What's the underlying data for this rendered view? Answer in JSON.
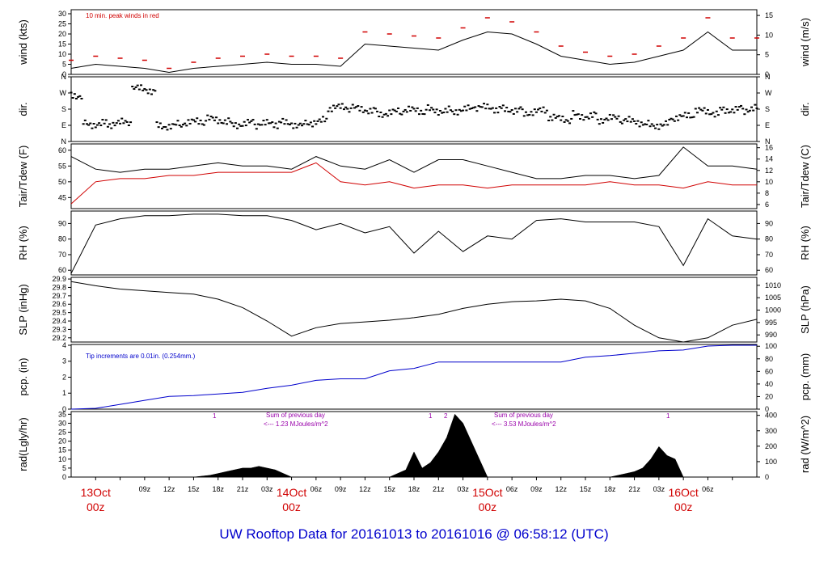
{
  "title": "UW Rooftop Data for 20161013  to  20161016 @ 06:58:12  (UTC)",
  "notes": {
    "wind": "10 min. peak winds in red",
    "pcp": "Tip increments are 0.01in. (0.254mm.)",
    "rad_sum1_line1": "Sum of previous day",
    "rad_sum1_line2": "<--- 1.23 MJoules/m^2",
    "rad_sum2_line1": "Sum of previous day",
    "rad_sum2_line2": "<--- 3.53 MJoules/m^2",
    "rad_markers": [
      "1",
      "1",
      "2",
      "1"
    ]
  },
  "x_axis": {
    "hour_ticks": [
      "09z",
      "12z",
      "15z",
      "18z",
      "21z",
      "03z",
      "06z",
      "09z",
      "12z",
      "15z",
      "18z",
      "21z",
      "03z",
      "06z",
      "09z",
      "12z",
      "15z",
      "18z",
      "21z",
      "03z",
      "06z"
    ],
    "day_labels": [
      {
        "date": "13Oct",
        "time": "00z"
      },
      {
        "date": "14Oct",
        "time": "00z"
      },
      {
        "date": "15Oct",
        "time": "00z"
      },
      {
        "date": "16Oct",
        "time": "00z"
      }
    ]
  },
  "colors": {
    "title": "#0000cc",
    "peak": "#d00000",
    "dewpoint": "#d00000",
    "precip": "#0000cc",
    "notes": "#9900aa",
    "day_label": "#d00000"
  },
  "chart_data": [
    {
      "type": "line",
      "panel": "wind",
      "ylabel_left": "wind (kts)",
      "ylabel_right": "wind (m/s)",
      "yticks_left": [
        0,
        5,
        10,
        15,
        20,
        25,
        30
      ],
      "yticks_right": [
        0,
        5,
        10,
        15
      ],
      "ylim": [
        0,
        32
      ],
      "x_hours": [
        -3,
        0,
        3,
        6,
        9,
        12,
        15,
        18,
        21,
        24,
        27,
        30,
        33,
        36,
        39,
        42,
        45,
        48,
        51,
        54,
        57,
        60,
        63,
        66,
        69,
        72,
        75,
        78,
        81
      ],
      "series": [
        {
          "name": "wind",
          "values": [
            3,
            5,
            4,
            3,
            1,
            3,
            4,
            5,
            6,
            5,
            5,
            4,
            15,
            14,
            13,
            12,
            17,
            21,
            20,
            15,
            9,
            7,
            5,
            6,
            9,
            12,
            21,
            12,
            12
          ]
        },
        {
          "name": "10 min. peak winds in red",
          "values": [
            7,
            9,
            8,
            7,
            3,
            6,
            8,
            9,
            10,
            9,
            9,
            8,
            21,
            20,
            19,
            18,
            23,
            28,
            26,
            21,
            14,
            11,
            9,
            10,
            14,
            18,
            28,
            18,
            18
          ]
        }
      ]
    },
    {
      "type": "scatter",
      "panel": "dir",
      "ylabel_left": "dir.",
      "ylabel_right": "dir.",
      "yticks_left": [
        "N",
        "E",
        "S",
        "W",
        "N"
      ],
      "yticks_right": [
        "N",
        "E",
        "S",
        "W",
        "N"
      ],
      "ylim": [
        0,
        360
      ],
      "x_hours": [
        -3,
        0,
        3,
        6,
        9,
        12,
        15,
        18,
        21,
        24,
        27,
        30,
        33,
        36,
        39,
        42,
        45,
        48,
        51,
        54,
        57,
        60,
        63,
        66,
        69,
        72,
        75,
        78,
        81
      ],
      "series": [
        {
          "name": "direction",
          "values": [
            260,
            100,
            100,
            290,
            90,
            105,
            120,
            100,
            95,
            100,
            110,
            185,
            180,
            160,
            170,
            175,
            175,
            185,
            180,
            165,
            125,
            145,
            125,
            110,
            95,
            135,
            165,
            180,
            180
          ]
        }
      ]
    },
    {
      "type": "line",
      "panel": "temperature",
      "ylabel_left": "Tair/Tdew (F)",
      "ylabel_right": "Tair/Tdew (C)",
      "yticks_left": [
        45,
        50,
        55,
        60
      ],
      "yticks_right": [
        6,
        8,
        10,
        12,
        14,
        16
      ],
      "ylim": [
        41.5,
        62
      ],
      "x_hours": [
        -3,
        0,
        3,
        6,
        9,
        12,
        15,
        18,
        21,
        24,
        27,
        30,
        33,
        36,
        39,
        42,
        45,
        48,
        51,
        54,
        57,
        60,
        63,
        66,
        69,
        72,
        75,
        78,
        81
      ],
      "series": [
        {
          "name": "Tair",
          "values": [
            58,
            54,
            53,
            54,
            54,
            55,
            56,
            55,
            55,
            54,
            58,
            55,
            54,
            57,
            53,
            57,
            57,
            55,
            53,
            51,
            51,
            52,
            52,
            51,
            52,
            61,
            55,
            55,
            54
          ]
        },
        {
          "name": "Tdew",
          "values": [
            43,
            50,
            51,
            51,
            52,
            52,
            53,
            53,
            53,
            53,
            56,
            50,
            49,
            50,
            48,
            49,
            49,
            48,
            49,
            49,
            49,
            49,
            50,
            49,
            49,
            48,
            50,
            49,
            49
          ]
        }
      ]
    },
    {
      "type": "line",
      "panel": "rh",
      "ylabel_left": "RH (%)",
      "ylabel_right": "RH (%)",
      "yticks_left": [
        60,
        70,
        80,
        90
      ],
      "yticks_right": [
        60,
        70,
        80,
        90
      ],
      "ylim": [
        57,
        98
      ],
      "x_hours": [
        -3,
        0,
        3,
        6,
        9,
        12,
        15,
        18,
        21,
        24,
        27,
        30,
        33,
        36,
        39,
        42,
        45,
        48,
        51,
        54,
        57,
        60,
        63,
        66,
        69,
        72,
        75,
        78,
        81
      ],
      "series": [
        {
          "name": "RH",
          "values": [
            58,
            89,
            93,
            95,
            95,
            96,
            96,
            95,
            95,
            92,
            86,
            90,
            84,
            88,
            71,
            85,
            72,
            82,
            80,
            92,
            93,
            91,
            91,
            91,
            88,
            63,
            93,
            82,
            80
          ]
        }
      ]
    },
    {
      "type": "line",
      "panel": "slp",
      "ylabel_left": "SLP (inHg)",
      "ylabel_right": "SLP (hPa)",
      "yticks_left": [
        29.2,
        29.3,
        29.4,
        29.5,
        29.6,
        29.7,
        29.8,
        29.9
      ],
      "yticks_right": [
        990,
        995,
        1000,
        1005,
        1010
      ],
      "ylim": [
        29.15,
        29.92
      ],
      "x_hours": [
        -3,
        0,
        3,
        6,
        9,
        12,
        15,
        18,
        21,
        24,
        27,
        30,
        33,
        36,
        39,
        42,
        45,
        48,
        51,
        54,
        57,
        60,
        63,
        66,
        69,
        72,
        75,
        78,
        81
      ],
      "series": [
        {
          "name": "SLP",
          "values": [
            29.87,
            29.82,
            29.78,
            29.76,
            29.74,
            29.72,
            29.66,
            29.56,
            29.4,
            29.22,
            29.32,
            29.37,
            29.39,
            29.41,
            29.44,
            29.48,
            29.55,
            29.6,
            29.63,
            29.64,
            29.66,
            29.64,
            29.55,
            29.35,
            29.2,
            29.15,
            29.2,
            29.35,
            29.42
          ]
        }
      ]
    },
    {
      "type": "line",
      "panel": "pcp",
      "ylabel_left": "pcp. (in)",
      "ylabel_right": "pcp. (mm)",
      "yticks_left": [
        0,
        1,
        2,
        3,
        4
      ],
      "yticks_right": [
        0,
        20,
        40,
        60,
        80,
        100
      ],
      "ylim": [
        0,
        4.05
      ],
      "x_hours": [
        -3,
        0,
        3,
        6,
        9,
        12,
        15,
        18,
        21,
        24,
        27,
        30,
        33,
        36,
        39,
        42,
        45,
        48,
        51,
        54,
        57,
        60,
        63,
        66,
        69,
        72,
        75,
        78,
        81
      ],
      "series": [
        {
          "name": "precipitation",
          "values": [
            0,
            0.05,
            0.3,
            0.55,
            0.8,
            0.85,
            0.95,
            1.05,
            1.3,
            1.5,
            1.8,
            1.9,
            1.9,
            2.4,
            2.55,
            2.95,
            2.95,
            2.95,
            2.95,
            2.95,
            2.95,
            3.25,
            3.35,
            3.5,
            3.65,
            3.7,
            3.95,
            4.0,
            4.0
          ]
        }
      ]
    },
    {
      "type": "area",
      "panel": "rad",
      "ylabel_left": "rad(Lgly/hr)",
      "ylabel_right": "rad (W/m^2)",
      "yticks_left": [
        0,
        5,
        10,
        15,
        20,
        25,
        30,
        35
      ],
      "yticks_right": [
        0,
        100,
        200,
        300,
        400
      ],
      "ylim": [
        0,
        36.5
      ],
      "x_hours": [
        -3,
        0,
        3,
        6,
        9,
        12,
        14,
        15,
        16,
        17,
        18,
        19,
        20,
        21,
        22,
        23,
        24,
        27,
        30,
        33,
        36,
        38,
        39,
        40,
        41,
        42,
        43,
        44,
        45,
        46,
        47,
        48,
        51,
        54,
        57,
        60,
        63,
        64,
        65,
        66,
        67,
        68,
        69,
        70,
        71,
        72,
        75,
        78,
        81
      ],
      "series": [
        {
          "name": "solar radiation",
          "values": [
            0,
            0,
            0,
            0,
            0,
            0,
            1,
            2,
            3,
            4,
            5,
            5,
            6,
            5,
            4,
            2,
            0,
            0,
            0,
            0,
            0,
            4,
            14,
            5,
            8,
            14,
            22,
            35,
            30,
            20,
            10,
            0,
            0,
            0,
            0,
            0,
            0,
            1,
            2,
            3,
            5,
            10,
            17,
            12,
            10,
            0,
            0,
            0,
            0
          ]
        }
      ]
    }
  ]
}
